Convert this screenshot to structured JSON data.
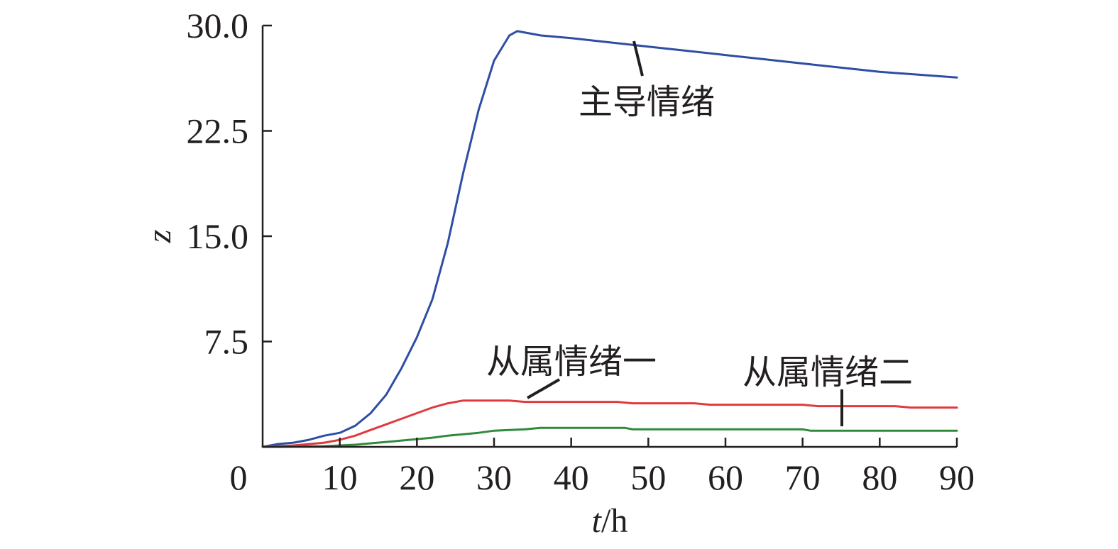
{
  "chart_data": {
    "type": "line",
    "title": "",
    "xlabel_var": "t",
    "xlabel_unit": "/h",
    "ylabel": "z",
    "xlim": [
      0,
      90
    ],
    "ylim": [
      0,
      30
    ],
    "x_ticks": [
      0,
      10,
      20,
      30,
      40,
      50,
      60,
      70,
      80,
      90
    ],
    "y_ticks": [
      7.5,
      15.0,
      22.5,
      30.0
    ],
    "x_tick_labels": [
      "0",
      "10",
      "20",
      "30",
      "40",
      "50",
      "60",
      "70",
      "80",
      "90"
    ],
    "y_tick_labels": [
      "7.5",
      "15.0",
      "22.5",
      "30.0"
    ],
    "grid": false,
    "legend": "none",
    "series": [
      {
        "name": "主导情绪",
        "color": "#2e4ea3",
        "x": [
          0,
          2,
          4,
          6,
          8,
          10,
          12,
          14,
          16,
          18,
          20,
          22,
          24,
          26,
          28,
          30,
          32,
          33,
          34,
          36,
          40,
          45,
          50,
          55,
          60,
          65,
          70,
          75,
          80,
          85,
          90
        ],
        "y": [
          0,
          0.2,
          0.3,
          0.5,
          0.8,
          1.0,
          1.5,
          2.4,
          3.7,
          5.6,
          7.8,
          10.5,
          14.5,
          19.5,
          24.0,
          27.5,
          29.3,
          29.6,
          29.5,
          29.3,
          29.1,
          28.8,
          28.5,
          28.2,
          27.9,
          27.6,
          27.3,
          27.0,
          26.7,
          26.5,
          26.3
        ]
      },
      {
        "name": "从属情绪一",
        "color": "#e03a3e",
        "x": [
          0,
          4,
          8,
          10,
          12,
          14,
          16,
          18,
          20,
          22,
          24,
          26,
          30,
          32,
          34,
          46,
          48,
          56,
          58,
          70,
          72,
          82,
          84,
          90
        ],
        "y": [
          0,
          0.1,
          0.3,
          0.5,
          0.8,
          1.2,
          1.6,
          2.0,
          2.4,
          2.8,
          3.1,
          3.3,
          3.3,
          3.3,
          3.2,
          3.2,
          3.1,
          3.1,
          3.0,
          3.0,
          2.9,
          2.9,
          2.8,
          2.8
        ]
      },
      {
        "name": "从属情绪二",
        "color": "#2f8a3c",
        "x": [
          0,
          8,
          10,
          12,
          14,
          16,
          18,
          20,
          22,
          24,
          26,
          28,
          30,
          32,
          34,
          36,
          47,
          48,
          70,
          71,
          90
        ],
        "y": [
          0,
          0.05,
          0.1,
          0.15,
          0.25,
          0.35,
          0.45,
          0.55,
          0.65,
          0.8,
          0.9,
          1.0,
          1.15,
          1.2,
          1.25,
          1.35,
          1.35,
          1.25,
          1.25,
          1.15,
          1.15
        ]
      }
    ],
    "annotations": [
      {
        "text": "主导情绪",
        "series": 0
      },
      {
        "text": "从属情绪一",
        "series": 1
      },
      {
        "text": "从属情绪二",
        "series": 2
      }
    ]
  }
}
